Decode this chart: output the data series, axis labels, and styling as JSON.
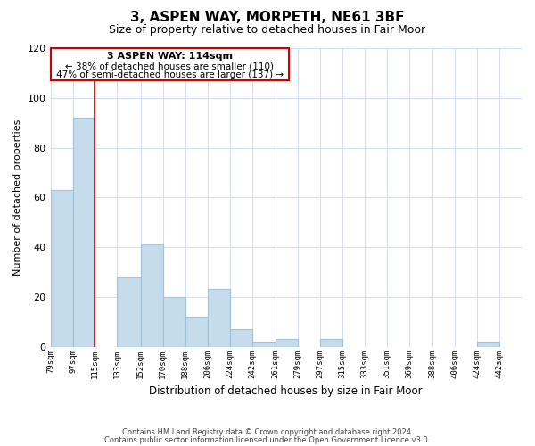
{
  "title": "3, ASPEN WAY, MORPETH, NE61 3BF",
  "subtitle": "Size of property relative to detached houses in Fair Moor",
  "xlabel": "Distribution of detached houses by size in Fair Moor",
  "ylabel": "Number of detached properties",
  "footnote1": "Contains HM Land Registry data © Crown copyright and database right 2024.",
  "footnote2": "Contains public sector information licensed under the Open Government Licence v3.0.",
  "annotation_line1": "3 ASPEN WAY: 114sqm",
  "annotation_line2": "← 38% of detached houses are smaller (110)",
  "annotation_line3": "47% of semi-detached houses are larger (137) →",
  "bar_left_edges": [
    79,
    97,
    115,
    133,
    152,
    170,
    188,
    206,
    224,
    242,
    261,
    279,
    297,
    315,
    333,
    351,
    369,
    388,
    406,
    424
  ],
  "bar_widths": [
    18,
    18,
    18,
    19,
    18,
    18,
    18,
    18,
    18,
    19,
    18,
    18,
    18,
    18,
    18,
    18,
    19,
    18,
    18,
    18
  ],
  "bar_heights": [
    63,
    92,
    0,
    28,
    41,
    20,
    12,
    23,
    7,
    2,
    3,
    0,
    3,
    0,
    0,
    0,
    0,
    0,
    0,
    2
  ],
  "tick_labels": [
    "79sqm",
    "97sqm",
    "115sqm",
    "133sqm",
    "152sqm",
    "170sqm",
    "188sqm",
    "206sqm",
    "224sqm",
    "242sqm",
    "261sqm",
    "279sqm",
    "297sqm",
    "315sqm",
    "333sqm",
    "351sqm",
    "369sqm",
    "388sqm",
    "406sqm",
    "424sqm",
    "442sqm"
  ],
  "tick_positions": [
    79,
    97,
    115,
    133,
    152,
    170,
    188,
    206,
    224,
    242,
    261,
    279,
    297,
    315,
    333,
    351,
    369,
    388,
    406,
    424,
    442
  ],
  "bar_color": "#c5dced",
  "bar_edge_color": "#a0c0dc",
  "vline_color": "#cc0000",
  "vline_x": 115,
  "ylim": [
    0,
    120
  ],
  "yticks": [
    0,
    20,
    40,
    60,
    80,
    100,
    120
  ],
  "xlim": [
    79,
    460
  ],
  "annotation_box_color": "#cc0000",
  "background_color": "#ffffff",
  "grid_color": "#d0e0f0"
}
